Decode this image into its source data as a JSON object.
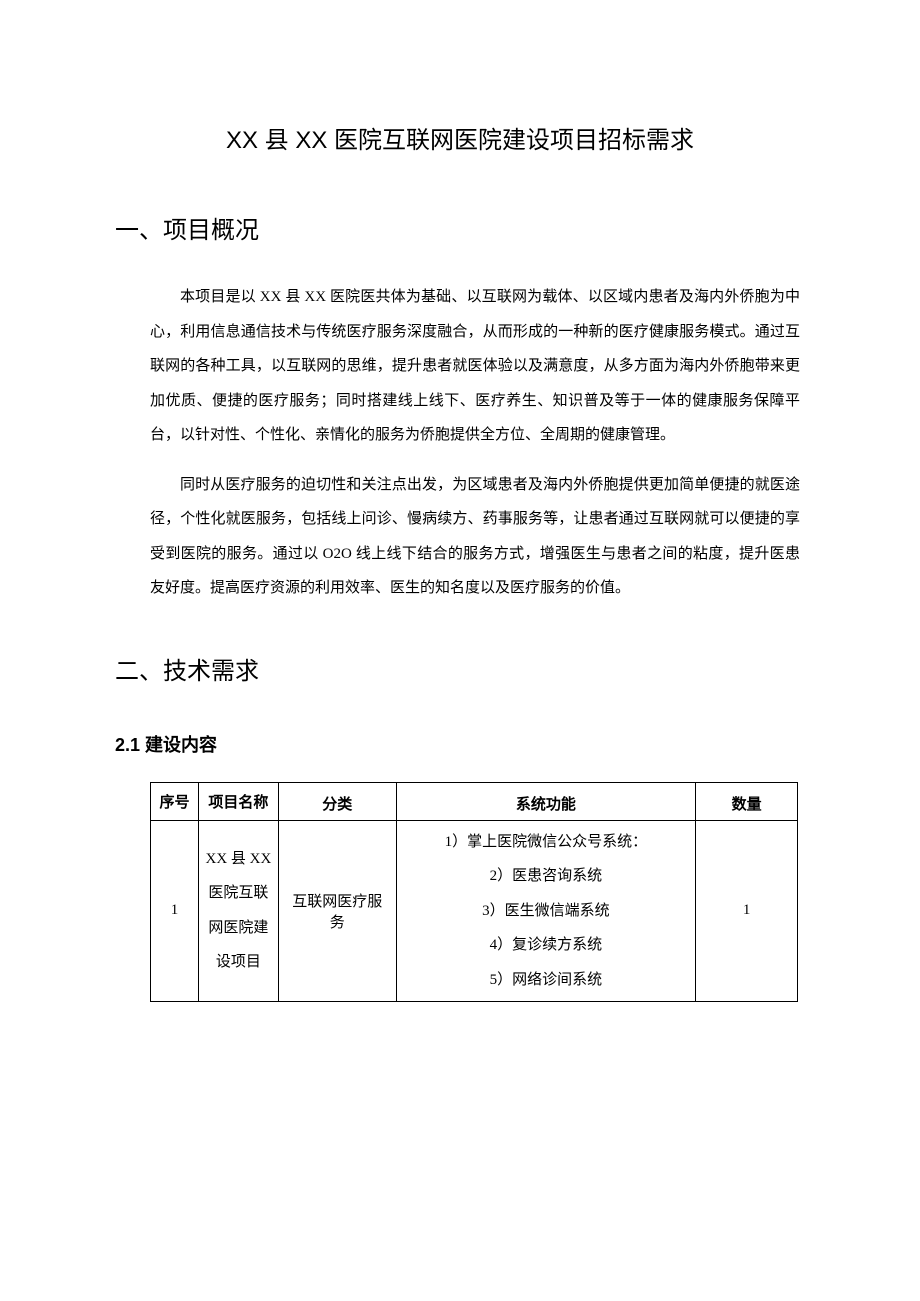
{
  "document": {
    "title": "XX 县 XX 医院互联网医院建设项目招标需求",
    "section1": {
      "heading": "一、项目概况",
      "paragraph1": "本项目是以 XX 县 XX 医院医共体为基础、以互联网为载体、以区域内患者及海内外侨胞为中心，利用信息通信技术与传统医疗服务深度融合，从而形成的一种新的医疗健康服务模式。通过互联网的各种工具，以互联网的思维，提升患者就医体验以及满意度，从多方面为海内外侨胞带来更加优质、便捷的医疗服务；同时搭建线上线下、医疗养生、知识普及等于一体的健康服务保障平台，以针对性、个性化、亲情化的服务为侨胞提供全方位、全周期的健康管理。",
      "paragraph2": "同时从医疗服务的迫切性和关注点出发，为区域患者及海内外侨胞提供更加简单便捷的就医途径，个性化就医服务，包括线上问诊、慢病续方、药事服务等，让患者通过互联网就可以便捷的享受到医院的服务。通过以 O2O 线上线下结合的服务方式，增强医生与患者之间的粘度，提升医患友好度。提高医疗资源的利用效率、医生的知名度以及医疗服务的价值。"
    },
    "section2": {
      "heading": "二、技术需求",
      "subsection": {
        "heading": "2.1 建设内容",
        "table": {
          "headers": {
            "seq": "序号",
            "name": "项目名称",
            "category": "分类",
            "function": "系统功能",
            "qty": "数量"
          },
          "row1": {
            "seq": "1",
            "name": "XX 县 XX 医院互联网医院建设项目",
            "category": "互联网医疗服务",
            "functions": "1）掌上医院微信公众号系统：\n2）医患咨询系统\n3）医生微信端系统\n4）复诊续方系统\n5）网络诊间系统",
            "qty": "1"
          }
        }
      }
    }
  },
  "colors": {
    "background": "#ffffff",
    "text": "#000000",
    "border": "#000000"
  },
  "typography": {
    "title_fontsize": 24,
    "heading_fontsize": 24,
    "subheading_fontsize": 18,
    "body_fontsize": 15,
    "line_height": 2.3
  }
}
